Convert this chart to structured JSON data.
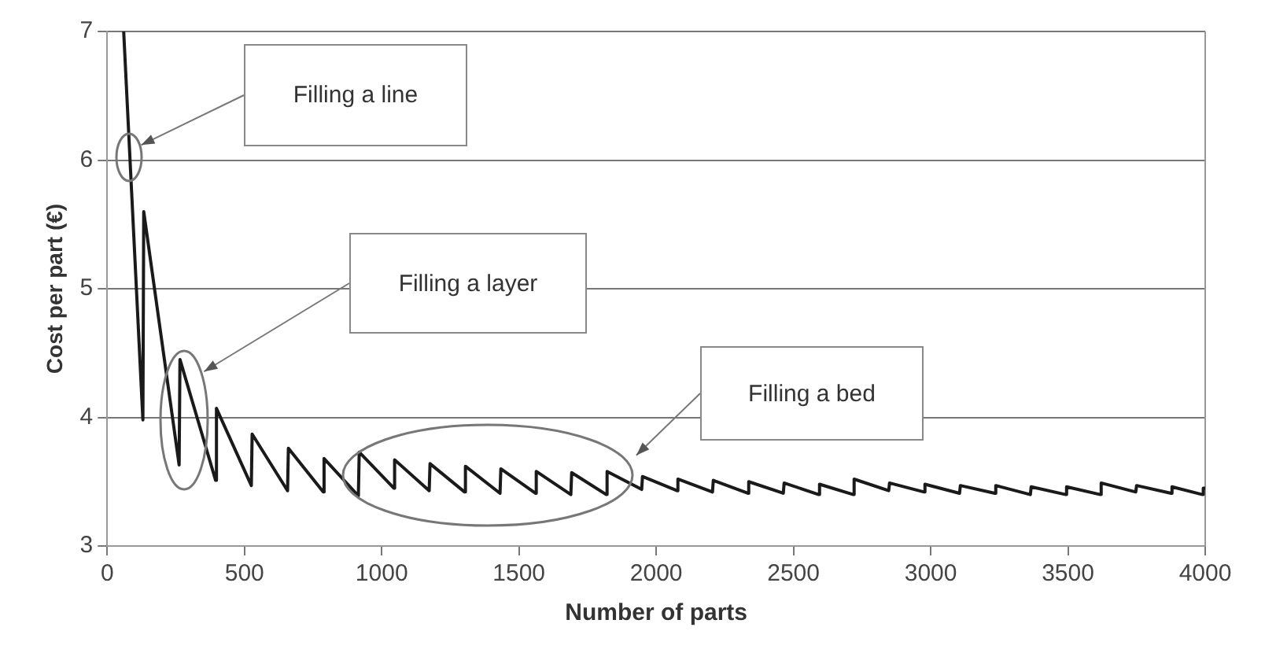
{
  "chart_data": {
    "type": "line",
    "xlabel": "Number of parts",
    "ylabel": "Cost per part (€)",
    "xlim": [
      0,
      4000
    ],
    "xticks": [
      0,
      500,
      1000,
      1500,
      2000,
      2500,
      3000,
      3500,
      4000
    ],
    "ylim": [
      3,
      7
    ],
    "yticks": [
      3,
      4,
      5,
      6,
      7
    ],
    "grid": "y",
    "legend": false,
    "marker": "none",
    "line_style": "solid",
    "series": [
      {
        "color": "#1a1a1a",
        "x": [
          60,
          130,
          133,
          262,
          265,
          395,
          398,
          525,
          528,
          657,
          660,
          787,
          790,
          915,
          918,
          1044,
          1047,
          1173,
          1176,
          1302,
          1305,
          1431,
          1434,
          1560,
          1563,
          1689,
          1692,
          1818,
          1821,
          1947,
          1950,
          2076,
          2079,
          2205,
          2208,
          2334,
          2337,
          2463,
          2466,
          2592,
          2595,
          2718,
          2721,
          2847,
          2850,
          2976,
          2979,
          3105,
          3108,
          3234,
          3237,
          3363,
          3366,
          3492,
          3495,
          3618,
          3621,
          3747,
          3750,
          3876,
          3879,
          3990,
          3993,
          4000
        ],
        "values": [
          7.0,
          3.98,
          5.6,
          3.63,
          4.45,
          3.51,
          4.07,
          3.47,
          3.87,
          3.43,
          3.76,
          3.42,
          3.68,
          3.39,
          3.73,
          3.45,
          3.67,
          3.43,
          3.64,
          3.42,
          3.62,
          3.41,
          3.6,
          3.41,
          3.58,
          3.4,
          3.57,
          3.4,
          3.58,
          3.44,
          3.54,
          3.43,
          3.52,
          3.42,
          3.51,
          3.41,
          3.5,
          3.41,
          3.49,
          3.4,
          3.48,
          3.4,
          3.52,
          3.43,
          3.49,
          3.42,
          3.48,
          3.41,
          3.47,
          3.41,
          3.47,
          3.4,
          3.46,
          3.4,
          3.46,
          3.4,
          3.49,
          3.42,
          3.47,
          3.41,
          3.46,
          3.4,
          3.45,
          3.45
        ]
      }
    ],
    "annotations": [
      "Filling a line",
      "Filling a layer",
      "Filling a bed"
    ]
  }
}
